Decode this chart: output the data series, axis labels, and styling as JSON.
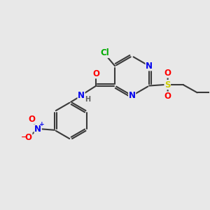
{
  "background_color": "#e8e8e8",
  "bond_color": "#3a3a3a",
  "bond_width": 1.5,
  "figsize": [
    3.0,
    3.0
  ],
  "dpi": 100,
  "atom_colors": {
    "N": "#0000ee",
    "O": "#ff0000",
    "Cl": "#00aa00",
    "S": "#cccc00",
    "C": "#3a3a3a",
    "H": "#606060"
  },
  "font_size": 8.5,
  "font_size_small": 7.0
}
